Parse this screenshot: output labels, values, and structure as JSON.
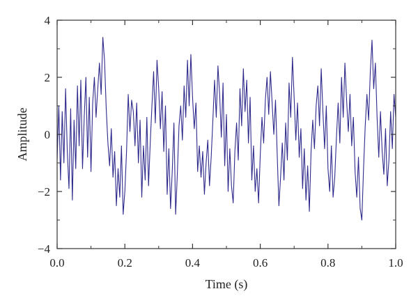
{
  "chart_data": {
    "type": "line",
    "xlabel": "Time (s)",
    "ylabel": "Amplitude",
    "xlim": [
      0.0,
      1.0
    ],
    "ylim": [
      -4,
      4
    ],
    "xticks": [
      "0.0",
      "0.2",
      "0.4",
      "0.6",
      "0.8",
      "1.0"
    ],
    "yticks": [
      "4",
      "2",
      "0",
      "−2",
      "−4"
    ],
    "grid": false,
    "line_color": "#2e2a8c",
    "series": [
      {
        "x": [
          0.0,
          0.005,
          0.01,
          0.015,
          0.02,
          0.025,
          0.03,
          0.035,
          0.04,
          0.045,
          0.05,
          0.055,
          0.06,
          0.065,
          0.07,
          0.075,
          0.08,
          0.085,
          0.09,
          0.095,
          0.1,
          0.105,
          0.11,
          0.115,
          0.12,
          0.125,
          0.13,
          0.135,
          0.14,
          0.145,
          0.15,
          0.155,
          0.16,
          0.165,
          0.17,
          0.175,
          0.18,
          0.185,
          0.19,
          0.195,
          0.2,
          0.205,
          0.21,
          0.215,
          0.22,
          0.225,
          0.23,
          0.235,
          0.24,
          0.245,
          0.25,
          0.255,
          0.26,
          0.265,
          0.27,
          0.275,
          0.28,
          0.285,
          0.29,
          0.295,
          0.3,
          0.305,
          0.31,
          0.315,
          0.32,
          0.325,
          0.33,
          0.335,
          0.34,
          0.345,
          0.35,
          0.355,
          0.36,
          0.365,
          0.37,
          0.375,
          0.38,
          0.385,
          0.39,
          0.395,
          0.4,
          0.405,
          0.41,
          0.415,
          0.42,
          0.425,
          0.43,
          0.435,
          0.44,
          0.445,
          0.45,
          0.455,
          0.46,
          0.465,
          0.47,
          0.475,
          0.48,
          0.485,
          0.49,
          0.495,
          0.5,
          0.505,
          0.51,
          0.515,
          0.52,
          0.525,
          0.53,
          0.535,
          0.54,
          0.545,
          0.55,
          0.555,
          0.56,
          0.565,
          0.57,
          0.575,
          0.58,
          0.585,
          0.59,
          0.595,
          0.6,
          0.605,
          0.61,
          0.615,
          0.62,
          0.625,
          0.63,
          0.635,
          0.64,
          0.645,
          0.65,
          0.655,
          0.66,
          0.665,
          0.67,
          0.675,
          0.68,
          0.685,
          0.69,
          0.695,
          0.7,
          0.705,
          0.71,
          0.715,
          0.72,
          0.725,
          0.73,
          0.735,
          0.74,
          0.745,
          0.75,
          0.755,
          0.76,
          0.765,
          0.77,
          0.775,
          0.78,
          0.785,
          0.79,
          0.795,
          0.8,
          0.805,
          0.81,
          0.815,
          0.82,
          0.825,
          0.83,
          0.835,
          0.84,
          0.845,
          0.85,
          0.855,
          0.86,
          0.865,
          0.87,
          0.875,
          0.88,
          0.885,
          0.89,
          0.895,
          0.9,
          0.905,
          0.91,
          0.915,
          0.92,
          0.925,
          0.93,
          0.935,
          0.94,
          0.945,
          0.95,
          0.955,
          0.96,
          0.965,
          0.97,
          0.975,
          0.98,
          0.985,
          0.99,
          0.995,
          1.0
        ],
        "y": [
          -0.9,
          1.0,
          -1.6,
          0.8,
          -1.0,
          1.6,
          -0.6,
          -1.9,
          0.9,
          -2.3,
          0.5,
          -1.2,
          1.7,
          -0.4,
          1.9,
          -1.2,
          0.6,
          2.0,
          -0.8,
          1.3,
          -1.3,
          1.1,
          2.0,
          0.6,
          1.6,
          2.5,
          1.4,
          3.4,
          2.6,
          0.9,
          -0.3,
          -1.1,
          0.2,
          -1.5,
          -0.6,
          -2.5,
          -1.2,
          -2.2,
          -0.4,
          -2.8,
          -2.0,
          -0.6,
          1.4,
          0.1,
          1.2,
          0.8,
          -0.4,
          1.1,
          -1.0,
          0.5,
          -2.2,
          -0.4,
          -1.6,
          0.6,
          -1.8,
          -0.3,
          1.0,
          2.2,
          0.4,
          2.6,
          1.6,
          0.2,
          1.5,
          -0.6,
          1.0,
          -2.1,
          -0.5,
          -2.6,
          -1.3,
          0.4,
          -2.8,
          -1.4,
          0.3,
          1.0,
          -0.2,
          1.7,
          0.6,
          2.6,
          1.0,
          2.8,
          1.3,
          0.2,
          1.1,
          -1.3,
          -0.4,
          -1.5,
          -0.6,
          -2.1,
          -1.0,
          -0.2,
          -1.8,
          -0.8,
          0.5,
          1.9,
          0.6,
          2.4,
          1.4,
          -0.1,
          1.8,
          -1.1,
          0.7,
          -2.0,
          -0.5,
          -1.8,
          -2.4,
          -0.6,
          0.4,
          -0.9,
          1.6,
          0.3,
          2.3,
          0.8,
          1.9,
          -0.3,
          1.3,
          -1.6,
          -0.4,
          -2.0,
          -1.2,
          -2.4,
          -0.7,
          0.6,
          -0.3,
          1.2,
          2.0,
          0.7,
          2.2,
          1.1,
          0.0,
          1.2,
          -0.7,
          -2.5,
          -1.5,
          -0.3,
          -1.6,
          0.4,
          -0.9,
          1.8,
          0.6,
          2.7,
          1.3,
          -0.2,
          1.1,
          -0.8,
          0.2,
          -1.9,
          -0.5,
          -2.3,
          -1.1,
          -2.7,
          -0.6,
          0.5,
          -0.5,
          1.0,
          1.7,
          0.3,
          2.3,
          0.8,
          -0.5,
          1.0,
          -1.2,
          -2.0,
          -0.4,
          -2.2,
          -1.5,
          -0.1,
          1.1,
          -0.3,
          2.0,
          0.6,
          2.5,
          1.2,
          0.1,
          1.4,
          -0.4,
          0.6,
          -1.3,
          -2.2,
          -0.8,
          -2.6,
          -3.0,
          -1.2,
          0.3,
          1.4,
          0.5,
          2.2,
          3.3,
          1.6,
          2.5,
          0.6,
          -0.8,
          0.8,
          -0.6,
          -1.4,
          0.2,
          -1.8,
          -0.9,
          0.8,
          -0.5,
          1.4,
          0.6
        ]
      }
    ]
  }
}
